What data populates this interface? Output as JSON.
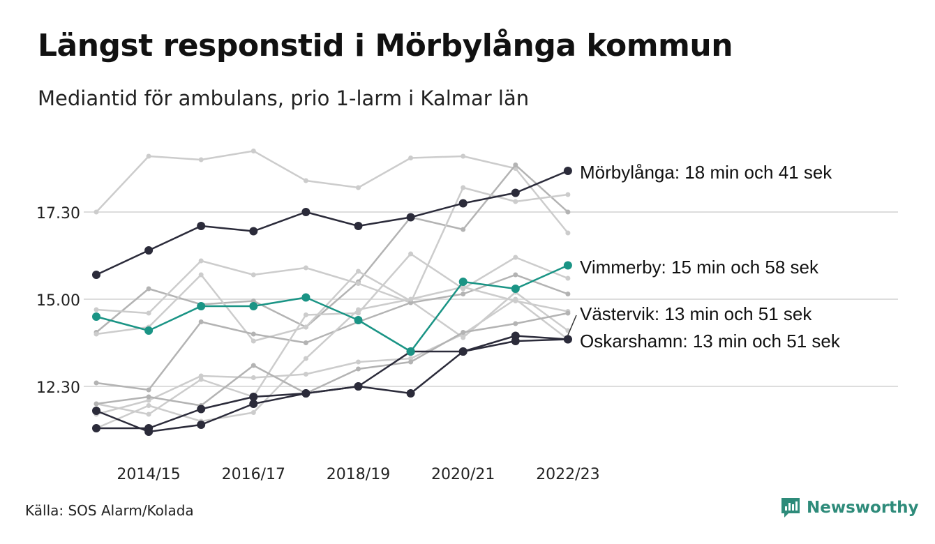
{
  "header": {
    "title": "Längst responstid i Mörbylånga kommun",
    "subtitle": "Mediantid för ambulans, prio 1-larm i Kalmar län"
  },
  "footer": {
    "source": "Källa: SOS Alarm/Kolada",
    "brand": "Newsworthy"
  },
  "colors": {
    "morbylanga": "#2b2b3a",
    "vimmerby": "#1a9485",
    "vastervik": "#2b2b3a",
    "oskarshamn": "#2b2b3a",
    "background_light": "#cccccc",
    "background_mid": "#b3b3b3",
    "gridline": "#dddddd",
    "brand": "#2e8b7a"
  },
  "chart_data": {
    "type": "line",
    "x": [
      "2013/14",
      "2014/15",
      "2015/16",
      "2016/17",
      "2017/18",
      "2018/19",
      "2019/20",
      "2020/21",
      "2021/22",
      "2022/23"
    ],
    "x_tick_labels": [
      "2014/15",
      "2016/17",
      "2018/19",
      "2020/21",
      "2022/23"
    ],
    "y_ticks": [
      12.5,
      15.0,
      17.5
    ],
    "y_tick_labels": [
      "12.30",
      "15.00",
      "17.30"
    ],
    "ylim": [
      10.9,
      19.0
    ],
    "y_unit": "minutes",
    "grid": true,
    "highlighted_series": [
      {
        "name": "Mörbylånga",
        "label": "Mörbylånga: 18 min och 41 sek",
        "color_key": "morbylanga",
        "values": [
          15.7,
          16.4,
          17.1,
          16.95,
          17.5,
          17.1,
          17.35,
          17.75,
          18.05,
          18.68
        ]
      },
      {
        "name": "Vimmerby",
        "label": "Vimmerby: 15 min och 58 sek",
        "color_key": "vimmerby",
        "values": [
          14.5,
          14.1,
          14.8,
          14.8,
          15.05,
          14.4,
          13.5,
          15.5,
          15.3,
          15.97
        ]
      },
      {
        "name": "Västervik",
        "label": "Västervik: 13 min och 51 sek",
        "color_key": "vastervik",
        "values": [
          11.8,
          11.2,
          11.4,
          12.0,
          12.3,
          12.5,
          13.5,
          13.5,
          13.8,
          13.85
        ]
      },
      {
        "name": "Oskarshamn",
        "label": "Oskarshamn: 13 min och 51 sek",
        "color_key": "oskarshamn",
        "values": [
          11.3,
          11.3,
          11.85,
          12.2,
          12.3,
          12.5,
          12.3,
          13.5,
          13.95,
          13.85
        ]
      }
    ],
    "background_series": [
      {
        "color_key": "background_light",
        "values": [
          17.5,
          19.1,
          19.0,
          19.25,
          18.4,
          18.2,
          19.05,
          19.1,
          18.75,
          16.9
        ]
      },
      {
        "color_key": "background_mid",
        "values": [
          14.05,
          15.3,
          14.85,
          14.95,
          14.2,
          15.5,
          17.35,
          17.0,
          18.85,
          17.5
        ]
      },
      {
        "color_key": "background_light",
        "values": [
          14.7,
          14.6,
          16.1,
          15.7,
          15.9,
          15.45,
          14.9,
          18.2,
          17.8,
          18.0
        ]
      },
      {
        "color_key": "background_light",
        "values": [
          14.0,
          14.2,
          15.7,
          13.8,
          14.2,
          15.8,
          14.95,
          13.9,
          15.2,
          14.1
        ]
      },
      {
        "color_key": "background_mid",
        "values": [
          12.6,
          12.4,
          14.35,
          14.0,
          13.75,
          14.35,
          14.9,
          15.15,
          15.7,
          15.15
        ]
      },
      {
        "color_key": "background_light",
        "values": [
          12.0,
          11.7,
          12.7,
          12.2,
          14.55,
          14.6,
          16.3,
          15.3,
          16.2,
          15.6
        ]
      },
      {
        "color_key": "background_light",
        "values": [
          11.3,
          11.95,
          11.5,
          11.75,
          13.3,
          14.7,
          15.0,
          15.35,
          14.95,
          14.65
        ]
      },
      {
        "color_key": "background_light",
        "values": [
          11.7,
          12.1,
          12.8,
          12.75,
          12.85,
          13.2,
          13.3,
          14.0,
          15.0,
          13.85
        ]
      },
      {
        "color_key": "background_mid",
        "values": [
          12.0,
          12.2,
          11.95,
          13.1,
          12.3,
          13.0,
          13.2,
          14.05,
          14.3,
          14.6
        ]
      }
    ]
  }
}
